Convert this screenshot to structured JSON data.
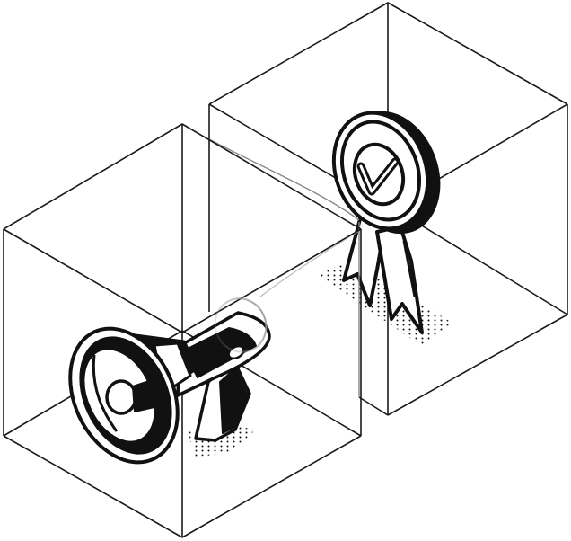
{
  "illustration": {
    "subjects": [
      "megaphone-icon",
      "award-ribbon-icon",
      "checkmark-icon",
      "glass-box"
    ],
    "colors": {
      "ink": "#111111",
      "line": "#1a1a1a",
      "glass": "#9a9a9a",
      "background": "#ffffff"
    }
  }
}
